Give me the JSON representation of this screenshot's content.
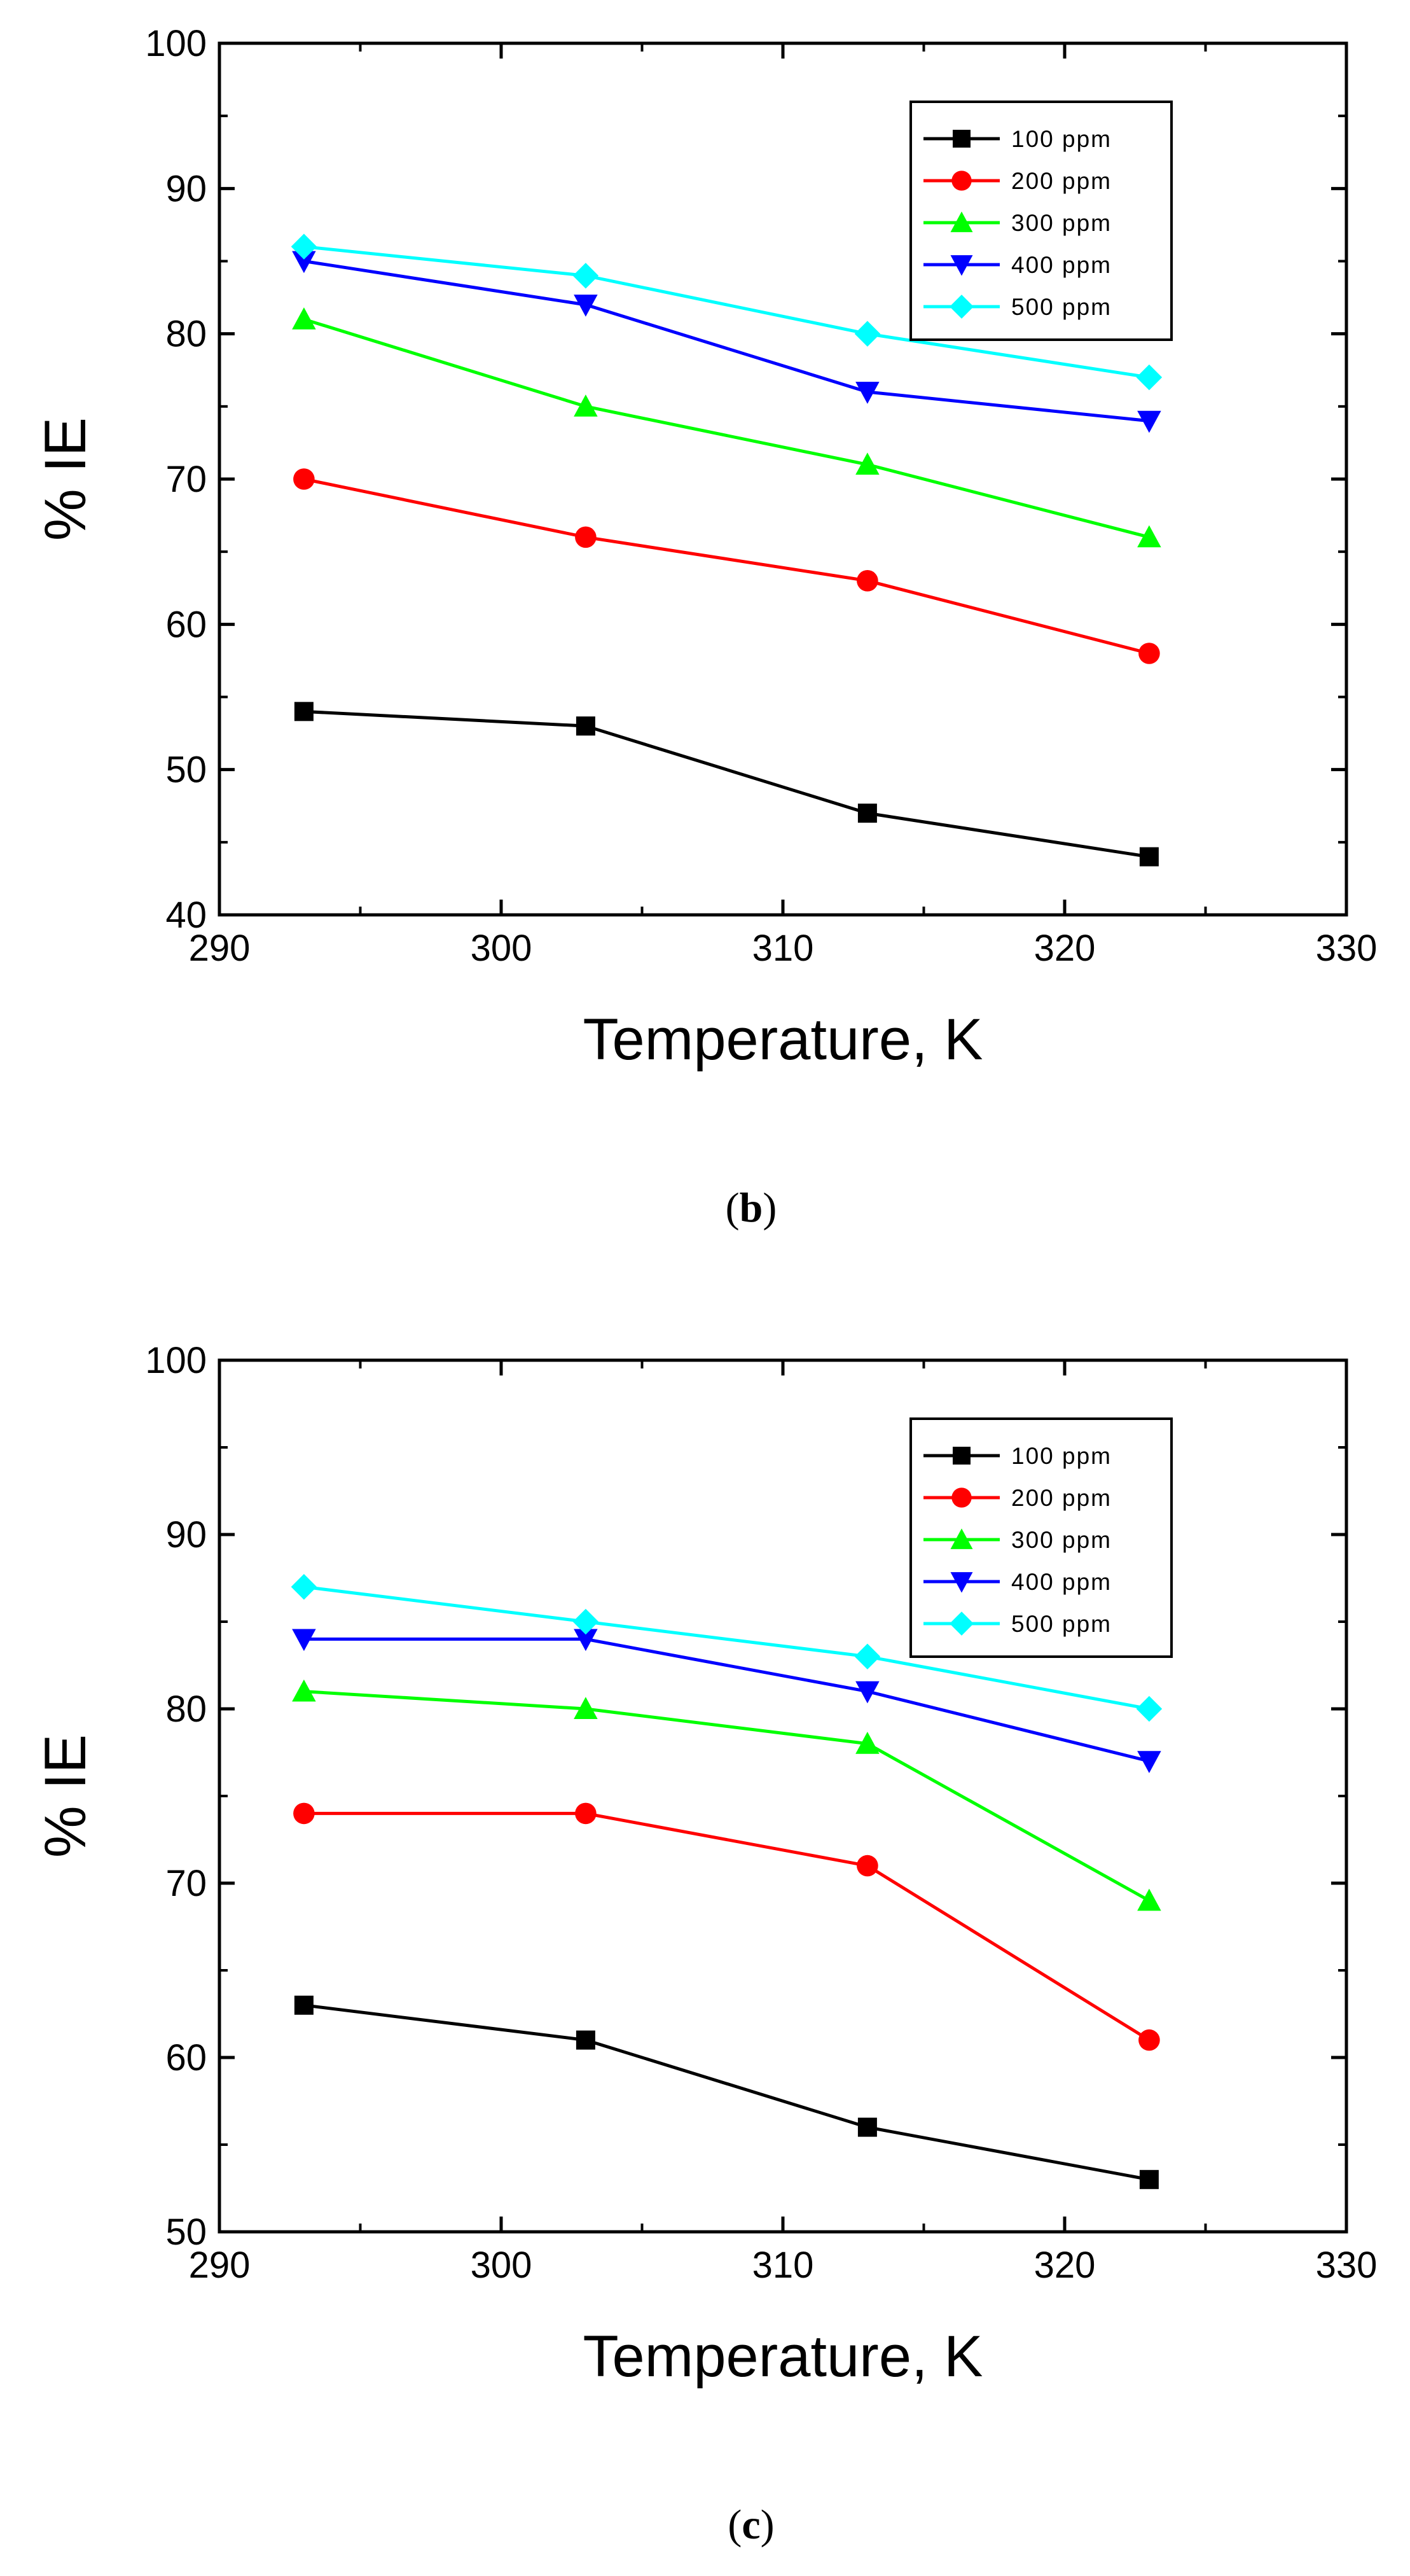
{
  "chart_data": [
    {
      "type": "line",
      "panel_label": "b",
      "xlabel": "Temperature, K",
      "ylabel": "% IE",
      "xlim": [
        290,
        330
      ],
      "ylim": [
        40,
        100
      ],
      "xticks": [
        290,
        300,
        310,
        320,
        330
      ],
      "yticks": [
        40,
        50,
        60,
        70,
        80,
        90,
        100
      ],
      "grid": false,
      "legend_position": "top-right",
      "x": [
        293,
        303,
        313,
        323
      ],
      "series": [
        {
          "name": "100 ppm",
          "color": "#000000",
          "marker": "square",
          "values": [
            54,
            53,
            47,
            44
          ]
        },
        {
          "name": "200 ppm",
          "color": "#ff0000",
          "marker": "circle",
          "values": [
            70,
            66,
            63,
            58
          ]
        },
        {
          "name": "300 ppm",
          "color": "#00ff00",
          "marker": "triangle-up",
          "values": [
            81,
            75,
            71,
            66
          ]
        },
        {
          "name": "400 ppm",
          "color": "#0000ff",
          "marker": "triangle-down",
          "values": [
            85,
            82,
            76,
            74
          ]
        },
        {
          "name": "500 ppm",
          "color": "#00ffff",
          "marker": "diamond",
          "values": [
            86,
            84,
            80,
            77
          ]
        }
      ]
    },
    {
      "type": "line",
      "panel_label": "c",
      "xlabel": "Temperature, K",
      "ylabel": "% IE",
      "xlim": [
        290,
        330
      ],
      "ylim": [
        50,
        100
      ],
      "xticks": [
        290,
        300,
        310,
        320,
        330
      ],
      "yticks": [
        50,
        60,
        70,
        80,
        90,
        100
      ],
      "grid": false,
      "legend_position": "top-right",
      "x": [
        293,
        303,
        313,
        323
      ],
      "series": [
        {
          "name": "100 ppm",
          "color": "#000000",
          "marker": "square",
          "values": [
            63,
            61,
            56,
            53
          ]
        },
        {
          "name": "200 ppm",
          "color": "#ff0000",
          "marker": "circle",
          "values": [
            74,
            74,
            71,
            61
          ]
        },
        {
          "name": "300 ppm",
          "color": "#00ff00",
          "marker": "triangle-up",
          "values": [
            81,
            80,
            78,
            69
          ]
        },
        {
          "name": "400 ppm",
          "color": "#0000ff",
          "marker": "triangle-down",
          "values": [
            84,
            84,
            81,
            77
          ]
        },
        {
          "name": "500 ppm",
          "color": "#00ffff",
          "marker": "diamond",
          "values": [
            87,
            85,
            83,
            80
          ]
        }
      ]
    }
  ]
}
